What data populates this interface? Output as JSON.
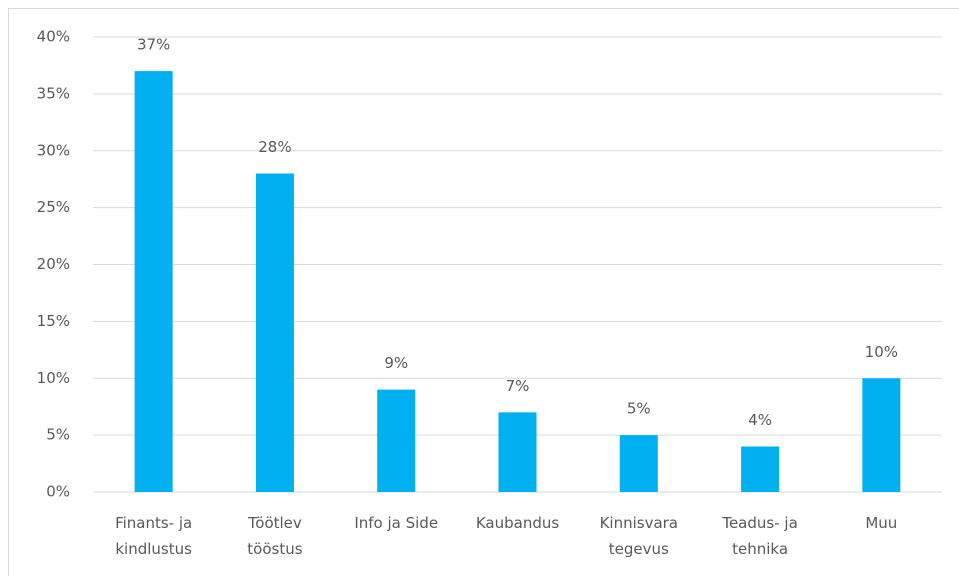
{
  "chart_data": {
    "type": "bar",
    "categories": [
      "Finants- ja\nkindlustus",
      "Töötlev\ntööstus",
      "Info ja Side",
      "Kaubandus",
      "Kinnisvara\ntegevus",
      "Teadus- ja\ntehnika",
      "Muu"
    ],
    "values": [
      37,
      28,
      9,
      7,
      5,
      4,
      10
    ],
    "value_labels": [
      "37%",
      "28%",
      "9%",
      "7%",
      "5%",
      "4%",
      "10%"
    ],
    "color": "#00b0f0",
    "ylim": [
      0,
      40
    ],
    "yticks": [
      {
        "value": 0,
        "label": "0%"
      },
      {
        "value": 5,
        "label": "5%"
      },
      {
        "value": 10,
        "label": "10%"
      },
      {
        "value": 15,
        "label": "15%"
      },
      {
        "value": 20,
        "label": "20%"
      },
      {
        "value": 25,
        "label": "25%"
      },
      {
        "value": 30,
        "label": "30%"
      },
      {
        "value": 35,
        "label": "35%"
      },
      {
        "value": 40,
        "label": "40%"
      }
    ],
    "grid": true
  }
}
